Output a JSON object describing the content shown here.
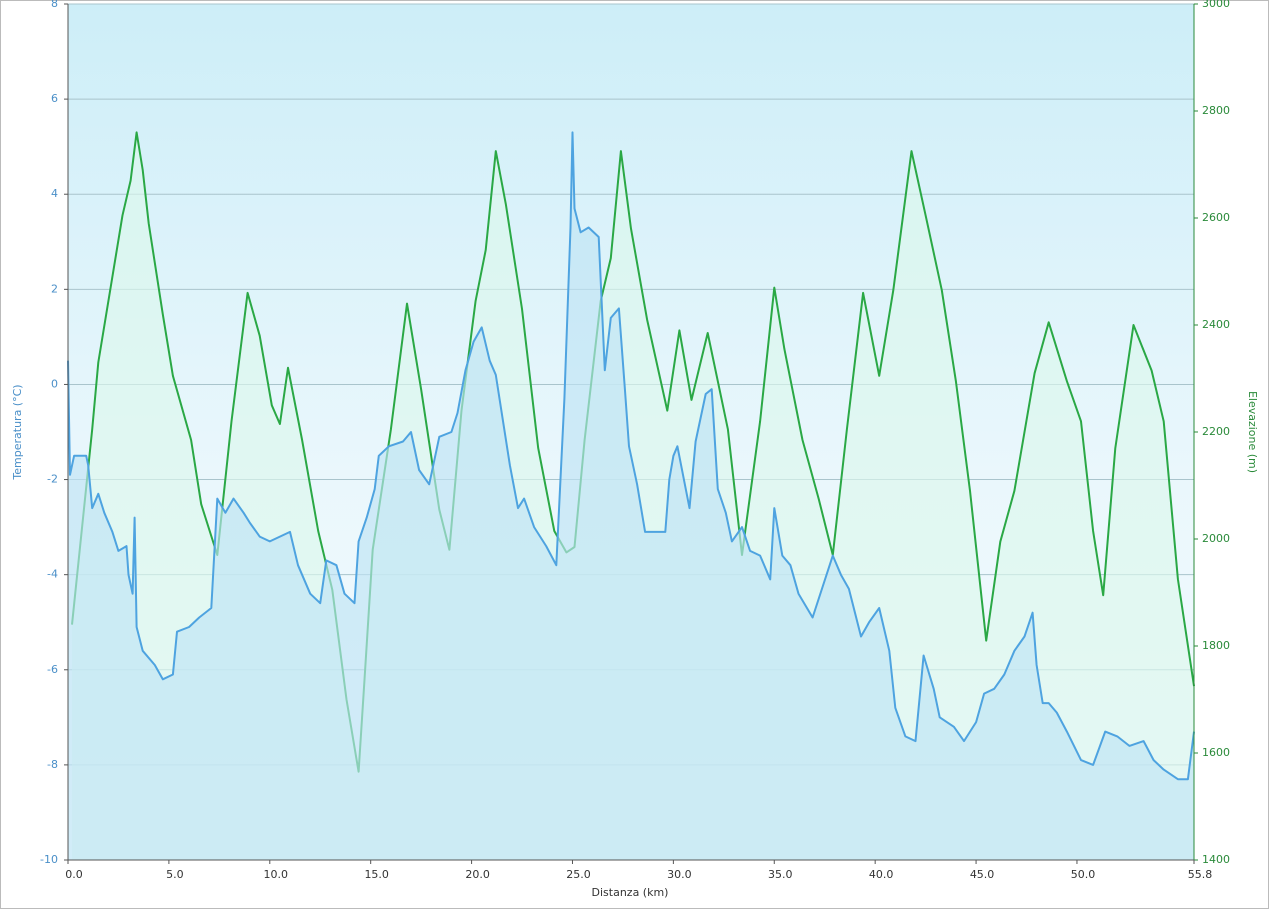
{
  "chart_data": {
    "type": "line",
    "xlabel": "Distanza  (km)",
    "ylabel": "Temperatura (°C)",
    "y2label": "Elevazione (m)",
    "xlim": [
      0,
      55.8
    ],
    "xticks": [
      {
        "value": 0,
        "label": "0.0"
      },
      {
        "value": 5,
        "label": "5.0"
      },
      {
        "value": 10,
        "label": "10.0"
      },
      {
        "value": 15,
        "label": "15.0"
      },
      {
        "value": 20,
        "label": "20.0"
      },
      {
        "value": 25,
        "label": "25.0"
      },
      {
        "value": 30,
        "label": "30.0"
      },
      {
        "value": 35,
        "label": "35.0"
      },
      {
        "value": 40,
        "label": "40.0"
      },
      {
        "value": 45,
        "label": "45.0"
      },
      {
        "value": 50,
        "label": "50.0"
      },
      55.8
    ],
    "ylim": [
      -10,
      8
    ],
    "yticks": [
      -10,
      -8,
      -6,
      -4,
      -2,
      0,
      2,
      4,
      6,
      8
    ],
    "y2lim": [
      1400,
      3000
    ],
    "y2ticks": [
      1400,
      1600,
      1800,
      2000,
      2200,
      2400,
      2600,
      2800,
      3000
    ],
    "grid": true,
    "series": [
      {
        "name": "Elevazione",
        "color": "#2aa845",
        "fill": "#dcf7ec",
        "axis": "y2",
        "x": [
          0.2,
          1.2,
          1.5,
          2.7,
          3.1,
          3.4,
          3.7,
          4.0,
          4.7,
          5.2,
          6.1,
          6.6,
          7.4,
          8.1,
          8.9,
          9.5,
          10.1,
          10.5,
          10.9,
          11.6,
          12.4,
          13.1,
          13.8,
          14.4,
          14.7,
          15.1,
          16.0,
          16.8,
          17.5,
          18.4,
          18.9,
          19.5,
          20.2,
          20.7,
          21.2,
          21.7,
          22.5,
          23.3,
          24.1,
          24.7,
          25.1,
          25.6,
          26.4,
          26.9,
          27.4,
          27.9,
          28.7,
          29.7,
          30.3,
          30.9,
          31.7,
          32.7,
          33.4,
          34.3,
          35.0,
          35.5,
          36.4,
          37.2,
          37.9,
          38.6,
          39.4,
          40.2,
          40.9,
          41.8,
          42.5,
          43.3,
          44.0,
          44.7,
          45.5,
          46.2,
          46.9,
          47.9,
          48.6,
          49.5,
          50.2,
          50.8,
          51.3,
          51.9,
          52.8,
          53.7,
          54.3,
          55.0,
          55.8
        ],
        "values": [
          1840,
          2205,
          2330,
          2605,
          2670,
          2760,
          2690,
          2590,
          2420,
          2305,
          2185,
          2065,
          1970,
          2220,
          2460,
          2380,
          2250,
          2215,
          2320,
          2185,
          2015,
          1905,
          1700,
          1565,
          1740,
          1980,
          2205,
          2440,
          2280,
          2055,
          1980,
          2240,
          2445,
          2540,
          2725,
          2625,
          2430,
          2170,
          2015,
          1975,
          1985,
          2185,
          2445,
          2525,
          2725,
          2580,
          2410,
          2240,
          2390,
          2260,
          2385,
          2205,
          1970,
          2220,
          2470,
          2355,
          2185,
          2075,
          1970,
          2205,
          2460,
          2305,
          2465,
          2725,
          2605,
          2465,
          2295,
          2090,
          1810,
          1995,
          2090,
          2310,
          2405,
          2295,
          2220,
          2015,
          1895,
          2170,
          2400,
          2315,
          2220,
          1925,
          1725
        ]
      },
      {
        "name": "Temperatura",
        "color": "#4ea3e0",
        "fill": "#bfe3f4",
        "axis": "y",
        "x": [
          0,
          0.1,
          0.3,
          0.9,
          1.0,
          1.2,
          1.5,
          1.8,
          2.2,
          2.5,
          2.9,
          3.0,
          3.2,
          3.3,
          3.4,
          3.7,
          4.3,
          4.7,
          5.2,
          5.4,
          6.0,
          6.5,
          7.1,
          7.4,
          7.8,
          8.2,
          8.7,
          9.0,
          9.5,
          10.0,
          10.5,
          11.0,
          11.4,
          12.0,
          12.5,
          12.8,
          13.3,
          13.7,
          14.2,
          14.4,
          14.8,
          15.2,
          15.4,
          15.9,
          16.6,
          17.0,
          17.4,
          17.9,
          18.4,
          19.0,
          19.3,
          19.7,
          20.1,
          20.5,
          20.9,
          21.2,
          21.9,
          22.3,
          22.6,
          23.1,
          23.7,
          24.2,
          24.6,
          24.9,
          25.0,
          25.1,
          25.4,
          25.8,
          26.3,
          26.6,
          26.9,
          27.3,
          27.6,
          27.8,
          28.2,
          28.6,
          29.6,
          29.8,
          30.0,
          30.2,
          30.8,
          31.1,
          31.6,
          31.9,
          32.2,
          32.6,
          32.9,
          33.4,
          33.8,
          34.3,
          34.8,
          35.0,
          35.4,
          35.8,
          36.2,
          36.9,
          37.9,
          38.3,
          38.7,
          39.3,
          39.7,
          40.2,
          40.7,
          41.0,
          41.5,
          42.0,
          42.4,
          42.9,
          43.2,
          43.9,
          44.4,
          45.0,
          45.4,
          45.9,
          46.4,
          46.9,
          47.4,
          47.8,
          48.0,
          48.3,
          48.6,
          49.0,
          49.5,
          50.2,
          50.8,
          51.4,
          52.0,
          52.6,
          53.3,
          53.8,
          54.3,
          55.0,
          55.5,
          55.8
        ],
        "values": [
          0.5,
          -1.9,
          -1.5,
          -1.5,
          -1.7,
          -2.6,
          -2.3,
          -2.7,
          -3.1,
          -3.5,
          -3.4,
          -4.0,
          -4.4,
          -2.8,
          -5.1,
          -5.6,
          -5.9,
          -6.2,
          -6.1,
          -5.2,
          -5.1,
          -4.9,
          -4.7,
          -2.4,
          -2.7,
          -2.4,
          -2.7,
          -2.9,
          -3.2,
          -3.3,
          -3.2,
          -3.1,
          -3.8,
          -4.4,
          -4.6,
          -3.7,
          -3.8,
          -4.4,
          -4.6,
          -3.3,
          -2.8,
          -2.2,
          -1.5,
          -1.3,
          -1.2,
          -1.0,
          -1.8,
          -2.1,
          -1.1,
          -1.0,
          -0.6,
          0.3,
          0.9,
          1.2,
          0.5,
          0.2,
          -1.7,
          -2.6,
          -2.4,
          -3.0,
          -3.4,
          -3.8,
          -0.3,
          3.3,
          5.3,
          3.7,
          3.2,
          3.3,
          3.1,
          0.3,
          1.4,
          1.6,
          -0.1,
          -1.3,
          -2.1,
          -3.1,
          -3.1,
          -2.0,
          -1.5,
          -1.3,
          -2.6,
          -1.2,
          -0.2,
          -0.1,
          -2.2,
          -2.7,
          -3.3,
          -3.0,
          -3.5,
          -3.6,
          -4.1,
          -2.6,
          -3.6,
          -3.8,
          -4.4,
          -4.9,
          -3.6,
          -4.0,
          -4.3,
          -5.3,
          -5.0,
          -4.7,
          -5.6,
          -6.8,
          -7.4,
          -7.5,
          -5.7,
          -6.4,
          -7.0,
          -7.2,
          -7.5,
          -7.1,
          -6.5,
          -6.4,
          -6.1,
          -5.6,
          -5.3,
          -4.8,
          -5.9,
          -6.7,
          -6.7,
          -6.9,
          -7.3,
          -7.9,
          -8.0,
          -7.3,
          -7.4,
          -7.6,
          -7.5,
          -7.9,
          -8.1,
          -8.3,
          -8.3,
          -7.3
        ]
      }
    ]
  }
}
